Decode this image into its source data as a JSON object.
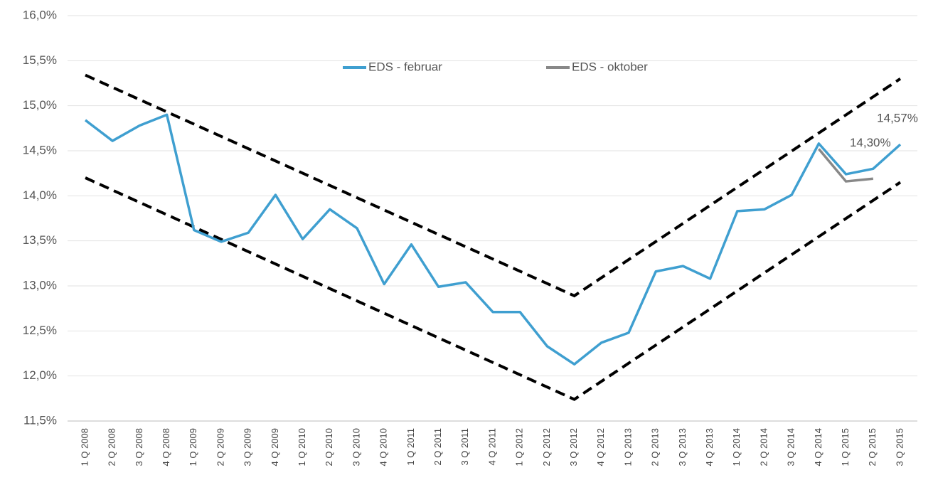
{
  "chart_data": {
    "type": "line",
    "categories": [
      "1 Q 2008",
      "2 Q 2008",
      "3 Q 2008",
      "4 Q 2008",
      "1 Q 2009",
      "2 Q 2009",
      "3 Q 2009",
      "4 Q 2009",
      "1 Q 2010",
      "2 Q 2010",
      "3 Q 2010",
      "4 Q 2010",
      "1 Q 2011",
      "2 Q 2011",
      "3 Q 2011",
      "4 Q 2011",
      "1 Q 2012",
      "2 Q 2012",
      "3 Q 2012",
      "4 Q 2012",
      "1 Q 2013",
      "2 Q 2013",
      "3 Q 2013",
      "4 Q 2013",
      "1 Q 2014",
      "2 Q 2014",
      "3 Q 2014",
      "4 Q 2014",
      "1 Q 2015",
      "2 Q 2015",
      "3 Q 2015"
    ],
    "series": [
      {
        "name": "EDS - februar",
        "color": "#3f9fd0",
        "values": [
          14.84,
          14.61,
          14.78,
          14.9,
          13.62,
          13.49,
          13.59,
          14.01,
          13.52,
          13.85,
          13.64,
          13.02,
          13.46,
          12.99,
          13.04,
          12.71,
          12.71,
          12.33,
          12.13,
          12.37,
          12.48,
          13.16,
          13.22,
          13.08,
          13.83,
          13.85,
          14.01,
          14.58,
          14.24,
          14.3,
          14.57
        ],
        "value_labels": [
          null,
          null,
          null,
          null,
          null,
          null,
          null,
          null,
          null,
          null,
          null,
          null,
          null,
          null,
          null,
          null,
          null,
          null,
          null,
          null,
          null,
          null,
          null,
          null,
          null,
          null,
          null,
          null,
          null,
          "14,30%",
          "14,57%"
        ]
      },
      {
        "name": "EDS - oktober",
        "color": "#888888",
        "values": [
          null,
          null,
          null,
          null,
          null,
          null,
          null,
          null,
          null,
          null,
          null,
          null,
          null,
          null,
          null,
          null,
          null,
          null,
          null,
          null,
          null,
          null,
          null,
          null,
          null,
          null,
          null,
          14.52,
          14.16,
          14.19,
          null
        ]
      }
    ],
    "trend_lines": [
      {
        "color": "#000000",
        "x": [
          "1 Q 2008",
          "3 Q 2012",
          "3 Q 2015"
        ],
        "values": [
          15.34,
          12.89,
          15.3
        ]
      },
      {
        "color": "#000000",
        "x": [
          "1 Q 2008",
          "3 Q 2012",
          "3 Q 2015"
        ],
        "values": [
          14.2,
          11.74,
          14.15
        ]
      }
    ],
    "ylim": [
      11.5,
      16.0
    ],
    "yticks": [
      {
        "value": 11.5,
        "label": "11,5%"
      },
      {
        "value": 12.0,
        "label": "12,0%"
      },
      {
        "value": 12.5,
        "label": "12,5%"
      },
      {
        "value": 13.0,
        "label": "13,0%"
      },
      {
        "value": 13.5,
        "label": "13,5%"
      },
      {
        "value": 14.0,
        "label": "14,0%"
      },
      {
        "value": 14.5,
        "label": "14,5%"
      },
      {
        "value": 15.0,
        "label": "15,0%"
      },
      {
        "value": 15.5,
        "label": "15,5%"
      },
      {
        "value": 16.0,
        "label": "16,0%"
      }
    ],
    "grid": true,
    "legend": "top"
  }
}
